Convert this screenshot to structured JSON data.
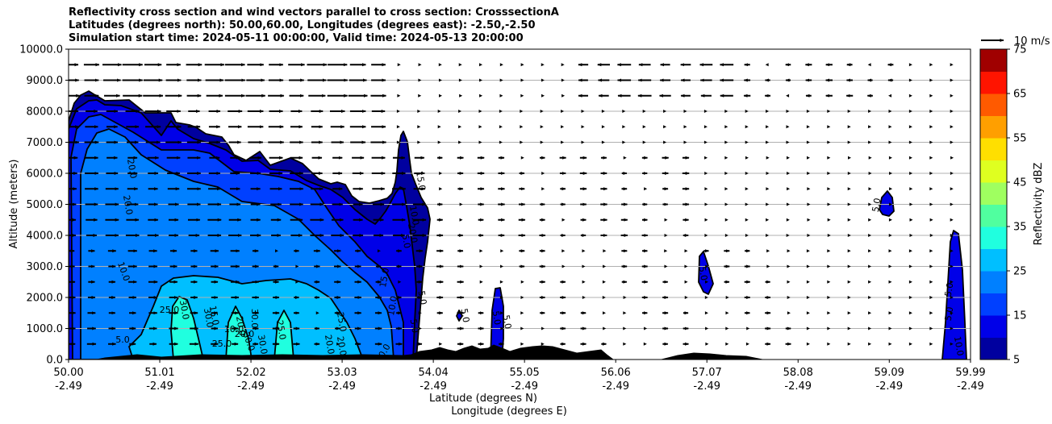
{
  "chart_data": {
    "type": "cross-section",
    "title_lines": [
      "Reflectivity cross section and wind vectors parallel to cross section: CrosssectionA",
      "Latitudes (degrees north): 50.00,60.00, Longitudes (degrees east): -2.50,-2.50",
      "Simulation start time: 2024-05-11 00:00:00, Valid time: 2024-05-13 20:00:00"
    ],
    "ylabel": "Altitude (meters)",
    "xlabel_lines": [
      "Latitude (degrees N)",
      "Longitude (degrees E)"
    ],
    "ylim": [
      0,
      10000
    ],
    "xlim": [
      50.0,
      59.99
    ],
    "y_ticks": [
      "0.0",
      "1000.0",
      "2000.0",
      "3000.0",
      "4000.0",
      "5000.0",
      "6000.0",
      "7000.0",
      "8000.0",
      "9000.0",
      "10000.0"
    ],
    "x_ticks": [
      {
        "lat": "50.00",
        "lon": "-2.49"
      },
      {
        "lat": "51.01",
        "lon": "-2.49"
      },
      {
        "lat": "52.02",
        "lon": "-2.49"
      },
      {
        "lat": "53.03",
        "lon": "-2.49"
      },
      {
        "lat": "54.04",
        "lon": "-2.49"
      },
      {
        "lat": "55.05",
        "lon": "-2.49"
      },
      {
        "lat": "56.06",
        "lon": "-2.49"
      },
      {
        "lat": "57.07",
        "lon": "-2.49"
      },
      {
        "lat": "58.08",
        "lon": "-2.49"
      },
      {
        "lat": "59.09",
        "lon": "-2.49"
      },
      {
        "lat": "59.99",
        "lon": "-2.49"
      }
    ],
    "grid": "horizontal",
    "colorbar": {
      "label": "Reflectivity dBZ",
      "min": 5,
      "max": 75,
      "step": 5,
      "ticks": [
        "5",
        "15",
        "25",
        "35",
        "45",
        "55",
        "65",
        "75"
      ],
      "colors": [
        "#00009f",
        "#0000e8",
        "#0040ff",
        "#0080ff",
        "#00bfff",
        "#20ffdf",
        "#50ff9f",
        "#9fff60",
        "#dfff20",
        "#ffdf00",
        "#ff9f00",
        "#ff5a00",
        "#ff1400",
        "#a00000"
      ]
    },
    "wind_key_label": "10 m/s",
    "contour_labels": [
      "20.0",
      "10.0",
      "20.0",
      "25.0",
      "30.0",
      "5.0",
      "10.0",
      "15.0",
      "20.0",
      "25.0",
      "30.0",
      "20.0",
      "30.0",
      "25.0",
      "30.0",
      "25.0",
      "20.0",
      "30.0",
      "20.0",
      "15.0",
      "10.0",
      "5.0",
      "10.0",
      "15.0",
      "20.0",
      "5.0",
      "10.0",
      "5.0",
      "5.0",
      "5.0",
      "5.0",
      "5.0",
      "5.0",
      "5.0",
      "5.0",
      "10.0"
    ]
  }
}
